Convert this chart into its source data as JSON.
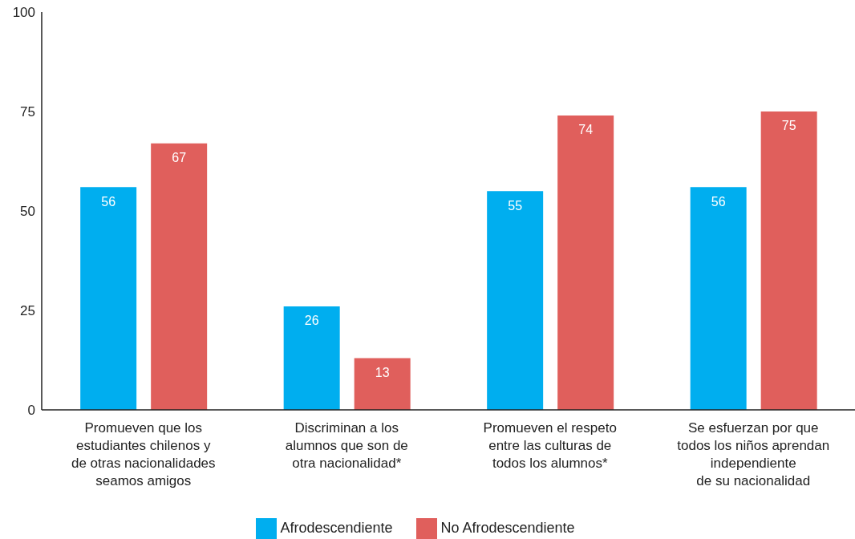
{
  "chart_data": {
    "type": "bar",
    "categories": [
      "Promueven que los\nestudiantes chilenos y\nde otras nacionalidades\nseamos amigos",
      "Discriminan a los\nalumnos que son de\notra nacionalidad*",
      "Promueven el respeto\nentre las culturas de\ntodos los alumnos*",
      "Se esfuerzan por que\ntodos los niños aprendan\nindependiente\nde su nacionalidad"
    ],
    "series": [
      {
        "name": "Afrodescendiente",
        "color": "#00aeef",
        "values": [
          56,
          26,
          55,
          56
        ]
      },
      {
        "name": "No Afrodescendiente",
        "color": "#e05f5c",
        "values": [
          67,
          13,
          74,
          75
        ]
      }
    ],
    "ylim": [
      0,
      100
    ],
    "yticks": [
      0,
      25,
      50,
      75,
      100
    ],
    "grid": false,
    "legend": "bottom",
    "data_labels": true
  }
}
